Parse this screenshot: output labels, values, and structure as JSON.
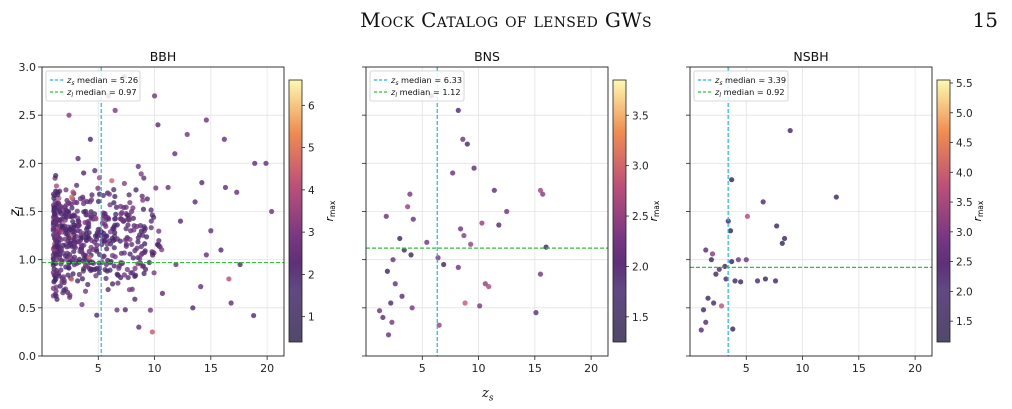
{
  "header": {
    "running_title": "Mock Catalog of lensed GWs",
    "page_number": "15"
  },
  "figure": {
    "shared_xlabel": "z",
    "shared_xlabel_sub": "s"
  },
  "chart_data": [
    {
      "type": "scatter",
      "title": "BBH",
      "xlabel": "z_s",
      "ylabel": "z_l",
      "xlim": [
        0,
        21.5
      ],
      "ylim": [
        0,
        3.0
      ],
      "xticks": [
        5,
        10,
        15,
        20
      ],
      "yticks": [
        0.0,
        0.5,
        1.0,
        1.5,
        2.0,
        2.5,
        3.0
      ],
      "grid": true,
      "legend_position": "upper-left",
      "median_lines": [
        {
          "label": "z_s median = 5.26",
          "axis": "x",
          "value": 5.26,
          "color": "#1fb5e3"
        },
        {
          "label": "z_l median = 0.97",
          "axis": "y",
          "value": 0.97,
          "color": "#2fc23a"
        }
      ],
      "colorbar": {
        "label": "r_max",
        "min": 0.4,
        "max": 6.6,
        "ticks": [
          1,
          2,
          3,
          4,
          5,
          6
        ]
      },
      "points": [
        [
          2.4,
          2.5,
          3.2
        ],
        [
          5.9,
          2.7,
          2.9
        ],
        [
          7.3,
          2.9,
          2.5
        ],
        [
          10.0,
          2.7,
          2.8
        ],
        [
          6.5,
          2.55,
          3.0
        ],
        [
          10.3,
          2.4,
          2.2
        ],
        [
          14.6,
          2.45,
          2.6
        ],
        [
          16.2,
          2.25,
          2.5
        ],
        [
          12.9,
          2.3,
          2.8
        ],
        [
          18.9,
          2.0,
          2.2
        ],
        [
          19.9,
          2.0,
          2.4
        ],
        [
          20.4,
          1.5,
          2.6
        ],
        [
          17.3,
          1.7,
          2.5
        ],
        [
          16.3,
          1.75,
          2.3
        ],
        [
          14.2,
          1.8,
          2.1
        ],
        [
          11.8,
          2.1,
          2.5
        ],
        [
          13.6,
          1.6,
          2.2
        ],
        [
          15.0,
          1.3,
          2.4
        ],
        [
          15.9,
          1.1,
          2.0
        ],
        [
          17.6,
          0.95,
          1.9
        ],
        [
          18.8,
          0.42,
          2.0
        ],
        [
          16.8,
          0.55,
          2.3
        ],
        [
          16.6,
          0.8,
          4.1
        ],
        [
          13.4,
          0.5,
          2.0
        ],
        [
          14.1,
          0.72,
          2.4
        ],
        [
          14.6,
          1.05,
          2.5
        ],
        [
          12.3,
          1.4,
          2.1
        ],
        [
          11.2,
          1.75,
          2.6
        ],
        [
          9.8,
          0.25,
          4.3
        ],
        [
          10.7,
          0.65,
          2.2
        ],
        [
          11.9,
          0.95,
          2.6
        ],
        [
          8.6,
          0.3,
          2.3
        ],
        [
          7.4,
          0.48,
          2.0
        ],
        [
          9.2,
          0.9,
          1.9
        ],
        [
          6.2,
          1.82,
          4.6
        ],
        [
          4.3,
          2.25,
          1.9
        ],
        [
          3.7,
          1.9,
          2.0
        ],
        [
          3.2,
          2.05,
          2.2
        ],
        [
          5.1,
          1.85,
          3.8
        ]
      ],
      "background_cloud": {
        "n": 540,
        "seed": 11,
        "x_range": [
          1.0,
          12.5
        ],
        "y_range": [
          0.25,
          2.25
        ],
        "x_peak": 4.0,
        "y_peak": 0.9
      }
    },
    {
      "type": "scatter",
      "title": "BNS",
      "xlabel": "z_s",
      "ylabel": "",
      "xlim": [
        0,
        21.5
      ],
      "ylim": [
        0,
        3.0
      ],
      "xticks": [
        5,
        10,
        15,
        20
      ],
      "grid": true,
      "legend_position": "upper-left",
      "median_lines": [
        {
          "label": "z_s median = 6.33",
          "axis": "x",
          "value": 6.33,
          "color": "#1fb5e3"
        },
        {
          "label": "z_l median = 1.12",
          "axis": "y",
          "value": 1.12,
          "color": "#2fc23a"
        }
      ],
      "colorbar": {
        "label": "r_max",
        "min": 1.25,
        "max": 3.85,
        "ticks": [
          1.5,
          2.0,
          2.5,
          3.0,
          3.5
        ]
      },
      "points": [
        [
          5.8,
          2.7,
          2.0
        ],
        [
          8.2,
          2.55,
          1.9
        ],
        [
          8.6,
          2.25,
          2.2
        ],
        [
          9.0,
          2.2,
          1.8
        ],
        [
          7.7,
          1.9,
          2.1
        ],
        [
          9.6,
          1.95,
          2.0
        ],
        [
          3.9,
          1.68,
          2.3
        ],
        [
          3.7,
          1.55,
          2.5
        ],
        [
          4.2,
          1.42,
          2.1
        ],
        [
          1.8,
          1.45,
          2.1
        ],
        [
          11.4,
          1.72,
          2.0
        ],
        [
          12.5,
          1.5,
          2.2
        ],
        [
          11.8,
          1.36,
          1.9
        ],
        [
          15.5,
          1.72,
          2.6
        ],
        [
          15.7,
          1.68,
          2.4
        ],
        [
          10.3,
          1.38,
          2.5
        ],
        [
          8.4,
          1.32,
          2.2
        ],
        [
          8.7,
          1.25,
          2.4
        ],
        [
          9.3,
          1.16,
          2.5
        ],
        [
          5.4,
          1.18,
          2.2
        ],
        [
          6.4,
          1.02,
          2.3
        ],
        [
          3.0,
          1.22,
          1.6
        ],
        [
          3.4,
          1.1,
          1.7
        ],
        [
          4.0,
          1.05,
          1.6
        ],
        [
          2.4,
          1.0,
          2.1
        ],
        [
          1.9,
          0.88,
          1.5
        ],
        [
          2.6,
          0.75,
          2.1
        ],
        [
          3.2,
          0.62,
          2.0
        ],
        [
          4.1,
          0.5,
          2.3
        ],
        [
          2.2,
          0.55,
          1.8
        ],
        [
          1.2,
          0.47,
          2.2
        ],
        [
          1.5,
          0.4,
          2.0
        ],
        [
          2.3,
          0.35,
          2.3
        ],
        [
          2.0,
          0.22,
          2.1
        ],
        [
          6.5,
          0.32,
          2.5
        ],
        [
          8.2,
          0.92,
          2.2
        ],
        [
          8.8,
          0.55,
          2.9
        ],
        [
          10.1,
          0.52,
          2.3
        ],
        [
          10.6,
          0.75,
          2.5
        ],
        [
          10.9,
          0.72,
          2.7
        ],
        [
          15.5,
          0.85,
          2.3
        ],
        [
          16.0,
          1.13,
          1.5
        ],
        [
          15.1,
          0.45,
          2.0
        ],
        [
          6.9,
          0.95,
          1.6
        ]
      ]
    },
    {
      "type": "scatter",
      "title": "NSBH",
      "xlabel": "z_s",
      "ylabel": "",
      "xlim": [
        0,
        21.5
      ],
      "ylim": [
        0,
        3.0
      ],
      "xticks": [
        5,
        10,
        15,
        20
      ],
      "grid": true,
      "legend_position": "upper-left",
      "median_lines": [
        {
          "label": "z_s median = 3.39",
          "axis": "x",
          "value": 3.39,
          "color": "#1fb5e3"
        },
        {
          "label": "z_l median = 0.92",
          "axis": "y",
          "value": 0.92,
          "color": "#2fc23a"
        }
      ],
      "colorbar": {
        "label": "r_max",
        "min": 1.15,
        "max": 5.55,
        "ticks": [
          1.5,
          2.0,
          2.5,
          3.0,
          3.5,
          4.0,
          4.5,
          5.0,
          5.5
        ]
      },
      "points": [
        [
          8.9,
          2.34,
          1.9
        ],
        [
          13.0,
          1.65,
          1.7
        ],
        [
          3.7,
          1.83,
          1.3
        ],
        [
          6.5,
          1.6,
          2.2
        ],
        [
          5.1,
          1.45,
          3.6
        ],
        [
          7.7,
          1.35,
          1.6
        ],
        [
          3.4,
          1.4,
          2.0
        ],
        [
          3.6,
          1.3,
          1.4
        ],
        [
          1.4,
          1.1,
          2.3
        ],
        [
          2.0,
          1.06,
          3.1
        ],
        [
          1.9,
          1.0,
          1.4
        ],
        [
          2.6,
          0.9,
          2.2
        ],
        [
          3.1,
          0.93,
          1.6
        ],
        [
          2.3,
          0.85,
          1.9
        ],
        [
          3.7,
          0.98,
          1.3
        ],
        [
          4.0,
          0.78,
          1.8
        ],
        [
          4.5,
          0.77,
          1.6
        ],
        [
          5.0,
          1.0,
          2.7
        ],
        [
          6.0,
          0.78,
          2.2
        ],
        [
          6.7,
          0.8,
          1.5
        ],
        [
          7.6,
          0.78,
          1.8
        ],
        [
          8.2,
          1.17,
          1.4
        ],
        [
          8.4,
          1.22,
          1.7
        ],
        [
          1.6,
          0.6,
          1.8
        ],
        [
          2.1,
          0.55,
          2.0
        ],
        [
          2.8,
          0.52,
          3.8
        ],
        [
          1.2,
          0.48,
          2.0
        ],
        [
          1.4,
          0.35,
          2.2
        ],
        [
          1.0,
          0.27,
          2.3
        ],
        [
          3.8,
          0.28,
          1.4
        ],
        [
          3.2,
          0.8,
          2.1
        ],
        [
          4.3,
          1.0,
          2.8
        ]
      ]
    }
  ]
}
